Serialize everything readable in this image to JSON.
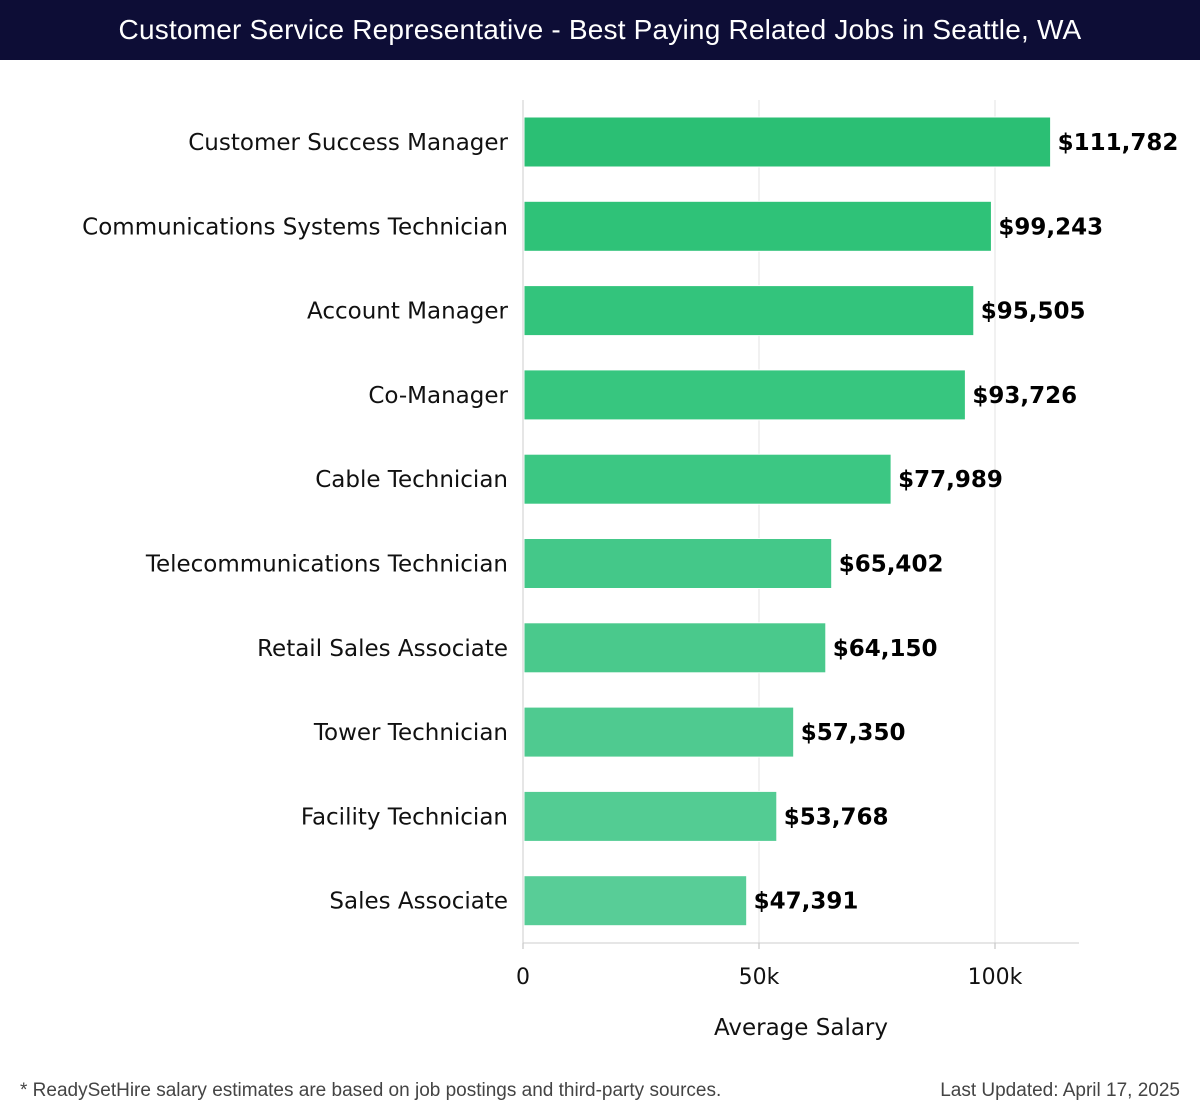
{
  "header": {
    "title": "Customer Service Representative - Best Paying Related Jobs in Seattle, WA"
  },
  "chart_data": {
    "type": "bar",
    "orientation": "horizontal",
    "title": "Customer Service Representative - Best Paying Related Jobs in Seattle, WA",
    "xlabel": "Average Salary",
    "ylabel": "",
    "xlim": [
      0,
      118000
    ],
    "xticks": [
      {
        "value": 0,
        "label": "0"
      },
      {
        "value": 50000,
        "label": "50k"
      },
      {
        "value": 100000,
        "label": "100k"
      }
    ],
    "grid": true,
    "categories": [
      "Customer Success Manager",
      "Communications Systems Technician",
      "Account Manager",
      "Co-Manager",
      "Cable Technician",
      "Telecommunications Technician",
      "Retail Sales Associate",
      "Tower Technician",
      "Facility Technician",
      "Sales Associate"
    ],
    "values": [
      111782,
      99243,
      95505,
      93726,
      77989,
      65402,
      64150,
      57350,
      53768,
      47391
    ],
    "value_labels": [
      "$111,782",
      "$99,243",
      "$95,505",
      "$93,726",
      "$77,989",
      "$65,402",
      "$64,150",
      "$57,350",
      "$53,768",
      "$47,391"
    ],
    "bar_colors": [
      "#2bbf74",
      "#2fc278",
      "#33c47c",
      "#37c67f",
      "#3cc783",
      "#44c889",
      "#4ac98c",
      "#4fca90",
      "#53cc93",
      "#58cd97"
    ]
  },
  "footer": {
    "note": "* ReadySetHire salary estimates are based on job postings and third-party sources.",
    "updated": "Last Updated: April 17, 2025"
  }
}
